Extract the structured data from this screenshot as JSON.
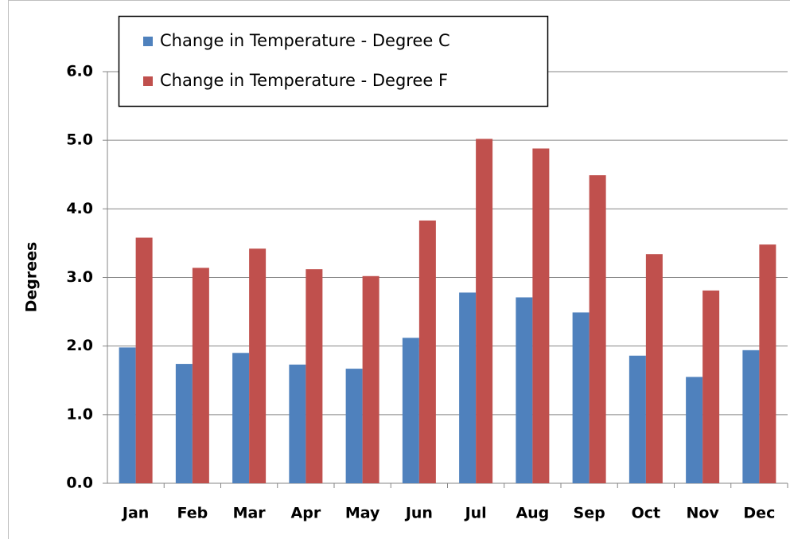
{
  "chart_data": {
    "type": "bar",
    "y_label": "Degrees",
    "categories": [
      "Jan",
      "Feb",
      "Mar",
      "Apr",
      "May",
      "Jun",
      "Jul",
      "Aug",
      "Sep",
      "Oct",
      "Nov",
      "Dec"
    ],
    "series": [
      {
        "name": "Change in Temperature - Degree C",
        "color": "#4f81bd",
        "values": [
          1.98,
          1.74,
          1.9,
          1.73,
          1.67,
          2.12,
          2.78,
          2.71,
          2.49,
          1.86,
          1.55,
          1.94
        ]
      },
      {
        "name": "Change in Temperature - Degree F",
        "color": "#c0504d",
        "values": [
          3.58,
          3.14,
          3.42,
          3.12,
          3.02,
          3.83,
          5.02,
          4.88,
          4.49,
          3.34,
          2.81,
          3.48
        ]
      }
    ],
    "ylim": [
      0,
      6
    ],
    "yticks": [
      {
        "value": 0,
        "label": "0.0"
      },
      {
        "value": 1,
        "label": "1.0"
      },
      {
        "value": 2,
        "label": "2.0"
      },
      {
        "value": 3,
        "label": "3.0"
      },
      {
        "value": 4,
        "label": "4.0"
      },
      {
        "value": 5,
        "label": "5.0"
      },
      {
        "value": 6,
        "label": "6.0"
      }
    ],
    "grid": true,
    "legend": "top-left"
  }
}
